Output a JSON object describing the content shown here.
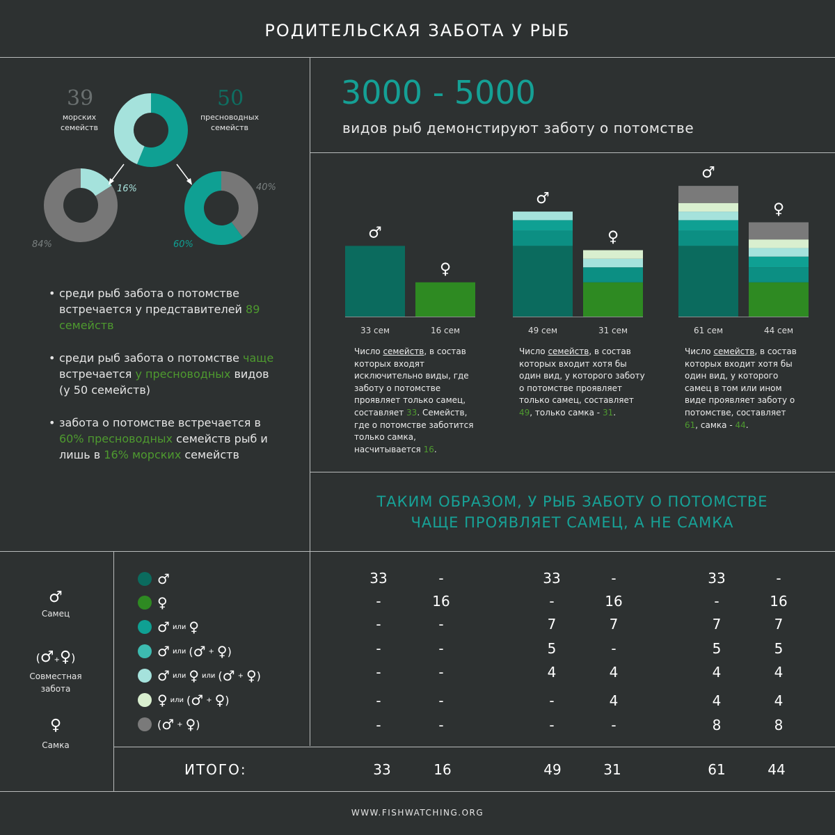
{
  "title": "РОДИТЕЛЬСКАЯ ЗАБОТА У РЫБ",
  "headline": {
    "range": "3000 - 5000",
    "subtitle": "видов рыб демонстируют заботу о потомстве"
  },
  "donuts": {
    "marine_num": "39",
    "marine_label": [
      "морских",
      "семейств"
    ],
    "fresh_num": "50",
    "fresh_label": [
      "пресноводных",
      "семейств"
    ],
    "marine_pct_care": "16%",
    "marine_pct_other": "84%",
    "fresh_pct_care": "60%",
    "fresh_pct_other": "40%"
  },
  "bullets": {
    "b1": {
      "t1": "среди рыб забота о потомстве встречается у представителей ",
      "g1": "89 семейств"
    },
    "b2": {
      "t1": "среди рыб забота о потомстве ",
      "g1": "чаще",
      "t2": " встречается ",
      "g2": "у пресноводных",
      "t3": " видов (у 50 семейств)"
    },
    "b3": {
      "t1": "забота о потомстве встречается в ",
      "g1": "60% пресноводных",
      "t2": " семейств рыб и лишь в ",
      "g2": "16% морских",
      "t3": " семейств"
    }
  },
  "symbols": {
    "male": "♂",
    "female": "♀"
  },
  "chart_data": {
    "type": "bar",
    "stacked": true,
    "categories": [
      "33 сем",
      "16 сем",
      "49 сем",
      "31 сем",
      "61 сем",
      "44 сем"
    ],
    "colors": {
      "male": "#0b6b5e",
      "female": "#2e8a22",
      "male_or_female": "#0fa093",
      "male_or_joint": "#0c8f83",
      "male_or_female_or_joint": "#3dbbb0",
      "female_or_joint": "#a5e2dc",
      "joint": "#d9efcf",
      "joint_grey": "#7a7a7a"
    },
    "series": [
      {
        "key": "male",
        "values": [
          33,
          0,
          33,
          0,
          33,
          0
        ]
      },
      {
        "key": "female",
        "values": [
          0,
          16,
          0,
          16,
          0,
          16
        ]
      },
      {
        "key": "male_or_female",
        "values": [
          0,
          0,
          7,
          7,
          7,
          7
        ]
      },
      {
        "key": "male_or_joint",
        "values": [
          0,
          0,
          5,
          0,
          5,
          5
        ]
      },
      {
        "key": "male_or_female_or_joint",
        "values": [
          0,
          0,
          4,
          4,
          4,
          4
        ]
      },
      {
        "key": "female_or_joint",
        "values": [
          0,
          0,
          0,
          4,
          4,
          4
        ]
      },
      {
        "key": "joint",
        "values": [
          0,
          0,
          0,
          0,
          8,
          8
        ]
      }
    ],
    "totals": [
      33,
      16,
      49,
      31,
      61,
      44
    ],
    "bar_symbols": [
      "♂",
      "♀",
      "♂",
      "♀",
      "♂",
      "♀"
    ]
  },
  "descriptions": {
    "d1": {
      "a": "Число ",
      "u": "семейств",
      "b": ", в состав которых входят исключительно виды, где заботу о потомстве проявляет только самец, составляет ",
      "n1": "33",
      "c": ". Семейств, где о потомстве заботится только самка, насчитывается ",
      "n2": "16",
      "d": "."
    },
    "d2": {
      "a": "Число ",
      "u": "семейств",
      "b": ", в состав которых входит хотя бы один вид, у которого заботу о потомстве проявляет только самец, составляет ",
      "n1": "49",
      "c": ", только самка - ",
      "n2": "31",
      "d": "."
    },
    "d3": {
      "a": "Число ",
      "u": "семейств",
      "b": ", в состав которых входит хотя бы один вид, у которого самец в том или ином виде проявляет заботу о потомстве, составляет ",
      "n1": "61",
      "c": ", самка - ",
      "n2": "44",
      "d": "."
    }
  },
  "conclusion": [
    "ТАКИМ ОБРАЗОМ, У РЫБ ЗАБОТУ О ПОТОМСТВЕ",
    "ЧАЩЕ ПРОЯВЛЯЕТ САМЕЦ, А НЕ САМКА"
  ],
  "side_legend": {
    "male_label": "Самец",
    "joint_label": [
      "Совместная",
      "забота"
    ],
    "female_label": "Самка",
    "joint_sym_open": "(",
    "joint_sym_close": ")",
    "plus": "+"
  },
  "legend": {
    "or": "или"
  },
  "table": {
    "rows": [
      [
        "33",
        "-",
        "33",
        "-",
        "33",
        "-"
      ],
      [
        "-",
        "16",
        "-",
        "16",
        "-",
        "16"
      ],
      [
        "-",
        "-",
        "7",
        "7",
        "7",
        "7"
      ],
      [
        "-",
        "-",
        "5",
        "-",
        "5",
        "5"
      ],
      [
        "-",
        "-",
        "4",
        "4",
        "4",
        "4"
      ],
      [
        "-",
        "-",
        "-",
        "4",
        "4",
        "4"
      ],
      [
        "-",
        "-",
        "-",
        "-",
        "8",
        "8"
      ]
    ],
    "total_label": "ИТОГО:",
    "totals": [
      "33",
      "16",
      "49",
      "31",
      "61",
      "44"
    ]
  },
  "footer": "WWW.FISHWATCHING.ORG"
}
